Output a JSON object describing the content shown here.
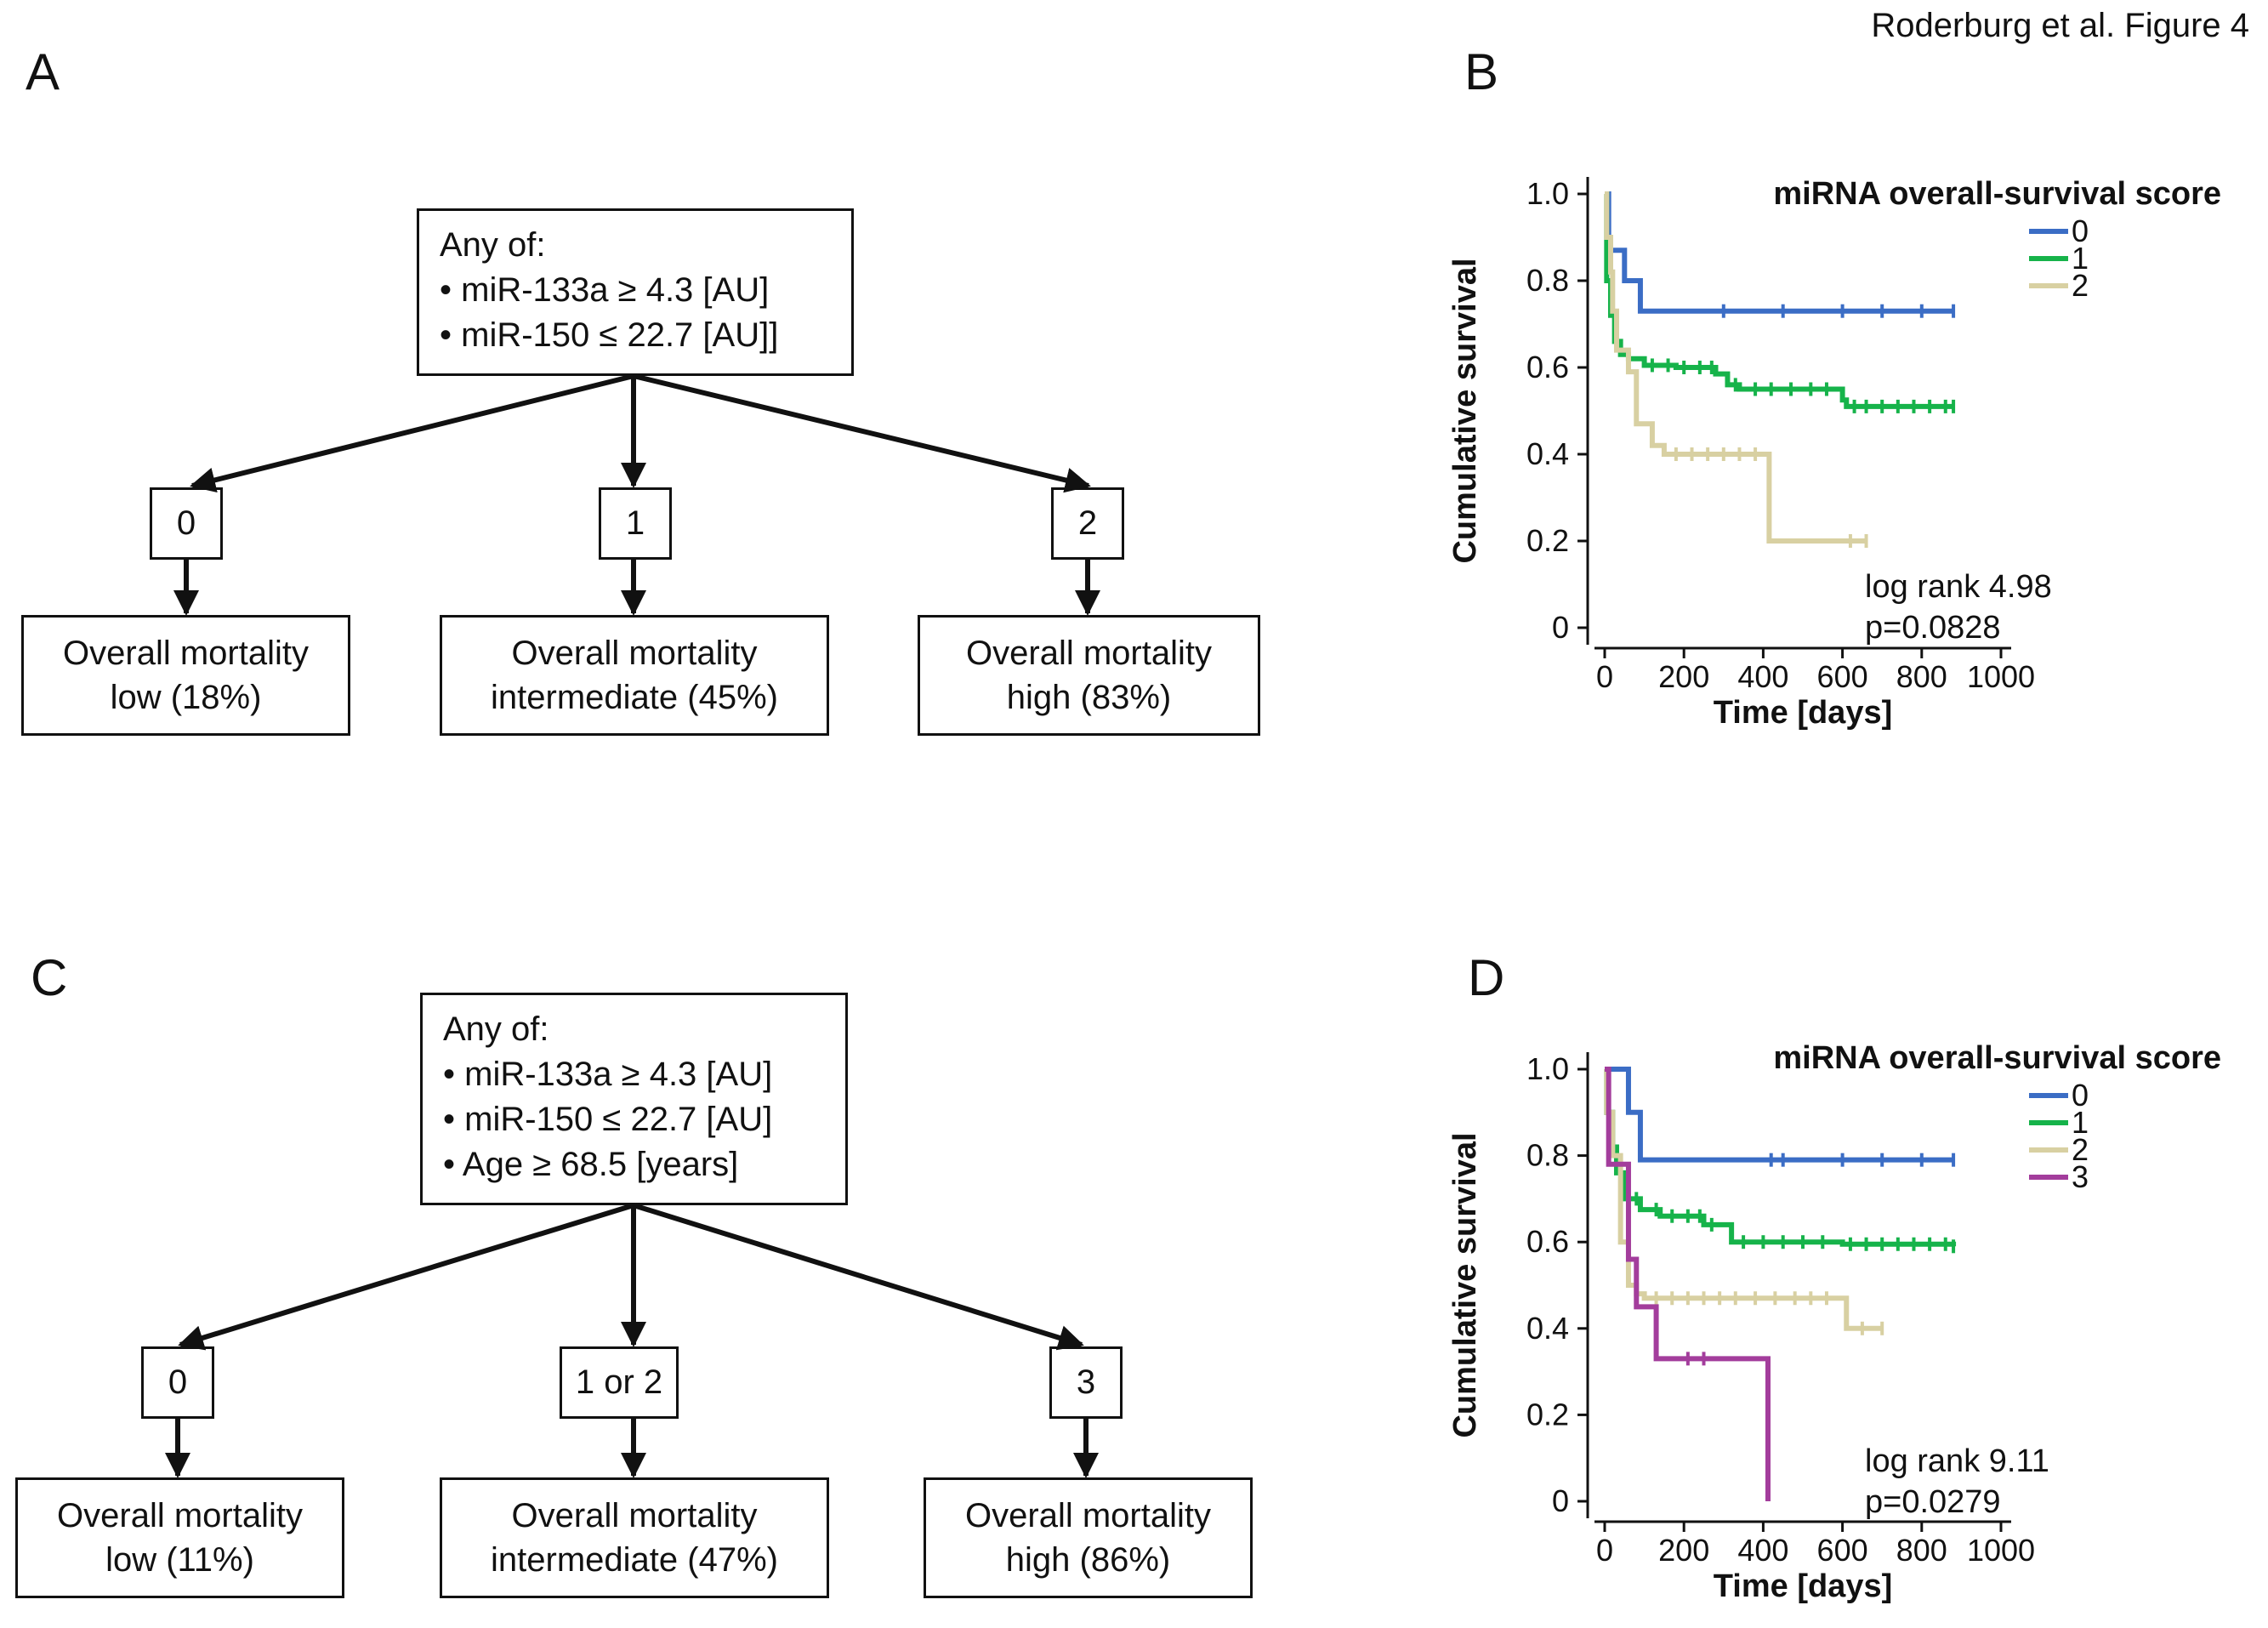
{
  "figure_caption": "Roderburg et al. Figure 4",
  "panels": {
    "A": {
      "letter": "A",
      "criteria_title": "Any of:",
      "criteria": [
        "• miR-133a ≥ 4.3 [AU]",
        "• miR-150 ≤ 22.7 [AU]]"
      ],
      "scores": [
        "0",
        "1",
        "2"
      ],
      "outcomes": [
        {
          "line1": "Overall mortality",
          "line2": "low (18%)"
        },
        {
          "line1": "Overall mortality",
          "line2": "intermediate (45%)"
        },
        {
          "line1": "Overall mortality",
          "line2": "high (83%)"
        }
      ]
    },
    "C": {
      "letter": "C",
      "criteria_title": "Any of:",
      "criteria": [
        "• miR-133a ≥ 4.3 [AU]",
        "• miR-150 ≤ 22.7 [AU]",
        "• Age ≥ 68.5 [years]"
      ],
      "scores": [
        "0",
        "1 or 2",
        "3"
      ],
      "outcomes": [
        {
          "line1": "Overall mortality",
          "line2": "low (11%)"
        },
        {
          "line1": "Overall mortality",
          "line2": "intermediate (47%)"
        },
        {
          "line1": "Overall mortality",
          "line2": "high (86%)"
        }
      ]
    },
    "B": {
      "letter": "B"
    },
    "D": {
      "letter": "D"
    }
  },
  "chart_data": [
    {
      "panel": "B",
      "type": "line",
      "step": true,
      "legend_title": "miRNA overall-survival score",
      "xlabel": "Time [days]",
      "ylabel": "Cumulative survival",
      "xlim": [
        0,
        1000
      ],
      "ylim": [
        0,
        1.0
      ],
      "xticks": [
        "0",
        "200",
        "400",
        "600",
        "800",
        "1000"
      ],
      "yticks": [
        "0",
        "0.2",
        "0.4",
        "0.6",
        "0.8",
        "1.0"
      ],
      "annotation": [
        "log rank 4.98",
        "p=0.0828"
      ],
      "series": [
        {
          "name": "0",
          "color": "#3b6dc5",
          "points": [
            [
              0,
              1.0
            ],
            [
              10,
              0.87
            ],
            [
              50,
              0.8
            ],
            [
              90,
              0.73
            ],
            [
              880,
              0.73
            ]
          ],
          "censor": [
            300,
            450,
            600,
            700,
            800,
            880
          ]
        },
        {
          "name": "1",
          "color": "#16b34a",
          "points": [
            [
              0,
              1.0
            ],
            [
              5,
              0.8
            ],
            [
              15,
              0.72
            ],
            [
              25,
              0.66
            ],
            [
              40,
              0.63
            ],
            [
              60,
              0.62
            ],
            [
              100,
              0.605
            ],
            [
              180,
              0.6
            ],
            [
              280,
              0.585
            ],
            [
              310,
              0.56
            ],
            [
              340,
              0.55
            ],
            [
              450,
              0.55
            ],
            [
              600,
              0.525
            ],
            [
              610,
              0.51
            ],
            [
              880,
              0.51
            ]
          ],
          "censor": [
            60,
            120,
            160,
            200,
            240,
            270,
            330,
            380,
            420,
            470,
            520,
            560,
            630,
            660,
            700,
            740,
            780,
            820,
            860,
            880
          ]
        },
        {
          "name": "2",
          "color": "#d8d0a2",
          "points": [
            [
              0,
              1.0
            ],
            [
              5,
              0.9
            ],
            [
              15,
              0.82
            ],
            [
              20,
              0.73
            ],
            [
              30,
              0.64
            ],
            [
              60,
              0.59
            ],
            [
              80,
              0.47
            ],
            [
              120,
              0.42
            ],
            [
              150,
              0.4
            ],
            [
              410,
              0.4
            ],
            [
              415,
              0.2
            ],
            [
              660,
              0.2
            ]
          ],
          "censor": [
            180,
            220,
            260,
            300,
            340,
            380,
            620,
            660
          ]
        }
      ]
    },
    {
      "panel": "D",
      "type": "line",
      "step": true,
      "legend_title": "miRNA overall-survival score",
      "xlabel": "Time [days]",
      "ylabel": "Cumulative survival",
      "xlim": [
        0,
        1000
      ],
      "ylim": [
        0,
        1.0
      ],
      "xticks": [
        "0",
        "200",
        "400",
        "600",
        "800",
        "1000"
      ],
      "yticks": [
        "0",
        "0.2",
        "0.4",
        "0.6",
        "0.8",
        "1.0"
      ],
      "annotation": [
        "log rank 9.11",
        "p=0.0279"
      ],
      "series": [
        {
          "name": "0",
          "color": "#3b6dc5",
          "points": [
            [
              0,
              1.0
            ],
            [
              40,
              1.0
            ],
            [
              60,
              0.9
            ],
            [
              90,
              0.79
            ],
            [
              880,
              0.79
            ]
          ],
          "censor": [
            420,
            450,
            600,
            700,
            800,
            880
          ]
        },
        {
          "name": "1",
          "color": "#16b34a",
          "points": [
            [
              0,
              1.0
            ],
            [
              5,
              0.9
            ],
            [
              20,
              0.82
            ],
            [
              30,
              0.76
            ],
            [
              50,
              0.7
            ],
            [
              90,
              0.675
            ],
            [
              140,
              0.66
            ],
            [
              250,
              0.64
            ],
            [
              320,
              0.6
            ],
            [
              600,
              0.595
            ],
            [
              880,
              0.59
            ]
          ],
          "censor": [
            80,
            130,
            170,
            210,
            240,
            270,
            350,
            400,
            450,
            500,
            550,
            620,
            660,
            700,
            740,
            780,
            820,
            860,
            880
          ]
        },
        {
          "name": "2",
          "color": "#d8d0a2",
          "points": [
            [
              0,
              1.0
            ],
            [
              5,
              0.9
            ],
            [
              20,
              0.8
            ],
            [
              40,
              0.6
            ],
            [
              60,
              0.5
            ],
            [
              80,
              0.48
            ],
            [
              100,
              0.47
            ],
            [
              600,
              0.47
            ],
            [
              610,
              0.4
            ],
            [
              700,
              0.4
            ]
          ],
          "censor": [
            130,
            170,
            210,
            250,
            290,
            330,
            380,
            430,
            480,
            520,
            560,
            650,
            700
          ]
        },
        {
          "name": "3",
          "color": "#a33d9c",
          "points": [
            [
              0,
              1.0
            ],
            [
              10,
              0.78
            ],
            [
              60,
              0.56
            ],
            [
              80,
              0.45
            ],
            [
              130,
              0.33
            ],
            [
              410,
              0.33
            ],
            [
              412,
              0.0
            ]
          ],
          "censor": [
            210,
            250
          ]
        }
      ]
    }
  ]
}
